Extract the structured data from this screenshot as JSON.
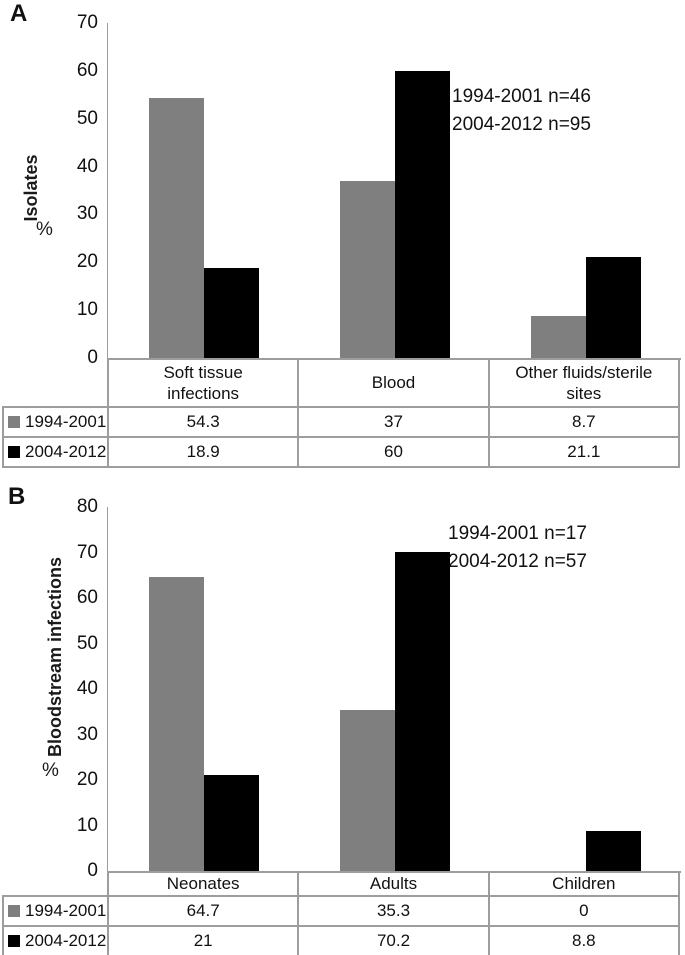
{
  "chart_data": [
    {
      "type": "bar",
      "panel_label": "A",
      "axis_title": "Isolates",
      "axis_unit": "%",
      "annotations": [
        "1994-2001 n=46",
        "2004-2012 n=95"
      ],
      "categories": [
        "Soft tissue infections",
        "Blood",
        "Other fluids/sterile sites"
      ],
      "series": [
        {
          "name": "1994-2001",
          "color": "#7f7f7f",
          "values": [
            54.3,
            37,
            8.7
          ],
          "display": [
            "54.3",
            "37",
            "8.7"
          ]
        },
        {
          "name": "2004-2012",
          "color": "#000000",
          "values": [
            18.9,
            60,
            21.1
          ],
          "display": [
            "18.9",
            "60",
            "21.1"
          ]
        }
      ],
      "ylim": [
        0,
        70
      ],
      "ytick_step": 10,
      "grid": false,
      "legend_position": "table-row-headers-left"
    },
    {
      "type": "bar",
      "panel_label": "B",
      "axis_title": "Bloodstream infections",
      "axis_unit": "%",
      "annotations": [
        "1994-2001 n=17",
        "2004-2012 n=57"
      ],
      "categories": [
        "Neonates",
        "Adults",
        "Children"
      ],
      "series": [
        {
          "name": "1994-2001",
          "color": "#7f7f7f",
          "values": [
            64.7,
            35.3,
            0
          ],
          "display": [
            "64.7",
            "35.3",
            "0"
          ]
        },
        {
          "name": "2004-2012",
          "color": "#000000",
          "values": [
            21,
            70.2,
            8.8
          ],
          "display": [
            "21",
            "70.2",
            "8.8"
          ]
        }
      ],
      "ylim": [
        0,
        80
      ],
      "ytick_step": 10,
      "grid": false,
      "legend_position": "table-row-headers-left"
    }
  ],
  "colors": {
    "bar_gray": "#7f7f7f",
    "bar_black": "#000000",
    "axis_and_table_lines": "#9d9d9d",
    "text": "#1a1a1a"
  }
}
